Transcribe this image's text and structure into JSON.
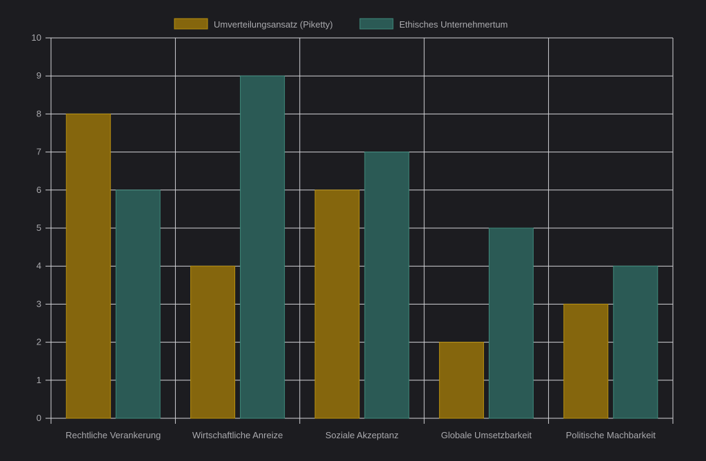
{
  "chart_data": {
    "type": "bar",
    "title": "",
    "xlabel": "",
    "ylabel": "",
    "categories": [
      "Rechtliche Verankerung",
      "Wirtschaftliche Anreize",
      "Soziale Akzeptanz",
      "Globale Umsetzbarkeit",
      "Politische Machbarkeit"
    ],
    "series": [
      {
        "name": "Umverteilungsansatz (Piketty)",
        "values": [
          8,
          4,
          6,
          2,
          3
        ],
        "color": "#85660d",
        "border": "#b8900f"
      },
      {
        "name": "Ethisches Unternehmertum",
        "values": [
          6,
          9,
          7,
          5,
          4
        ],
        "color": "#2b5a55",
        "border": "#3f8a7c"
      }
    ],
    "ylim": [
      0,
      10
    ],
    "yticks": [
      "0",
      "1",
      "2",
      "3",
      "4",
      "5",
      "6",
      "7",
      "8",
      "9",
      "10"
    ],
    "grid": true,
    "legend": "top-center"
  }
}
